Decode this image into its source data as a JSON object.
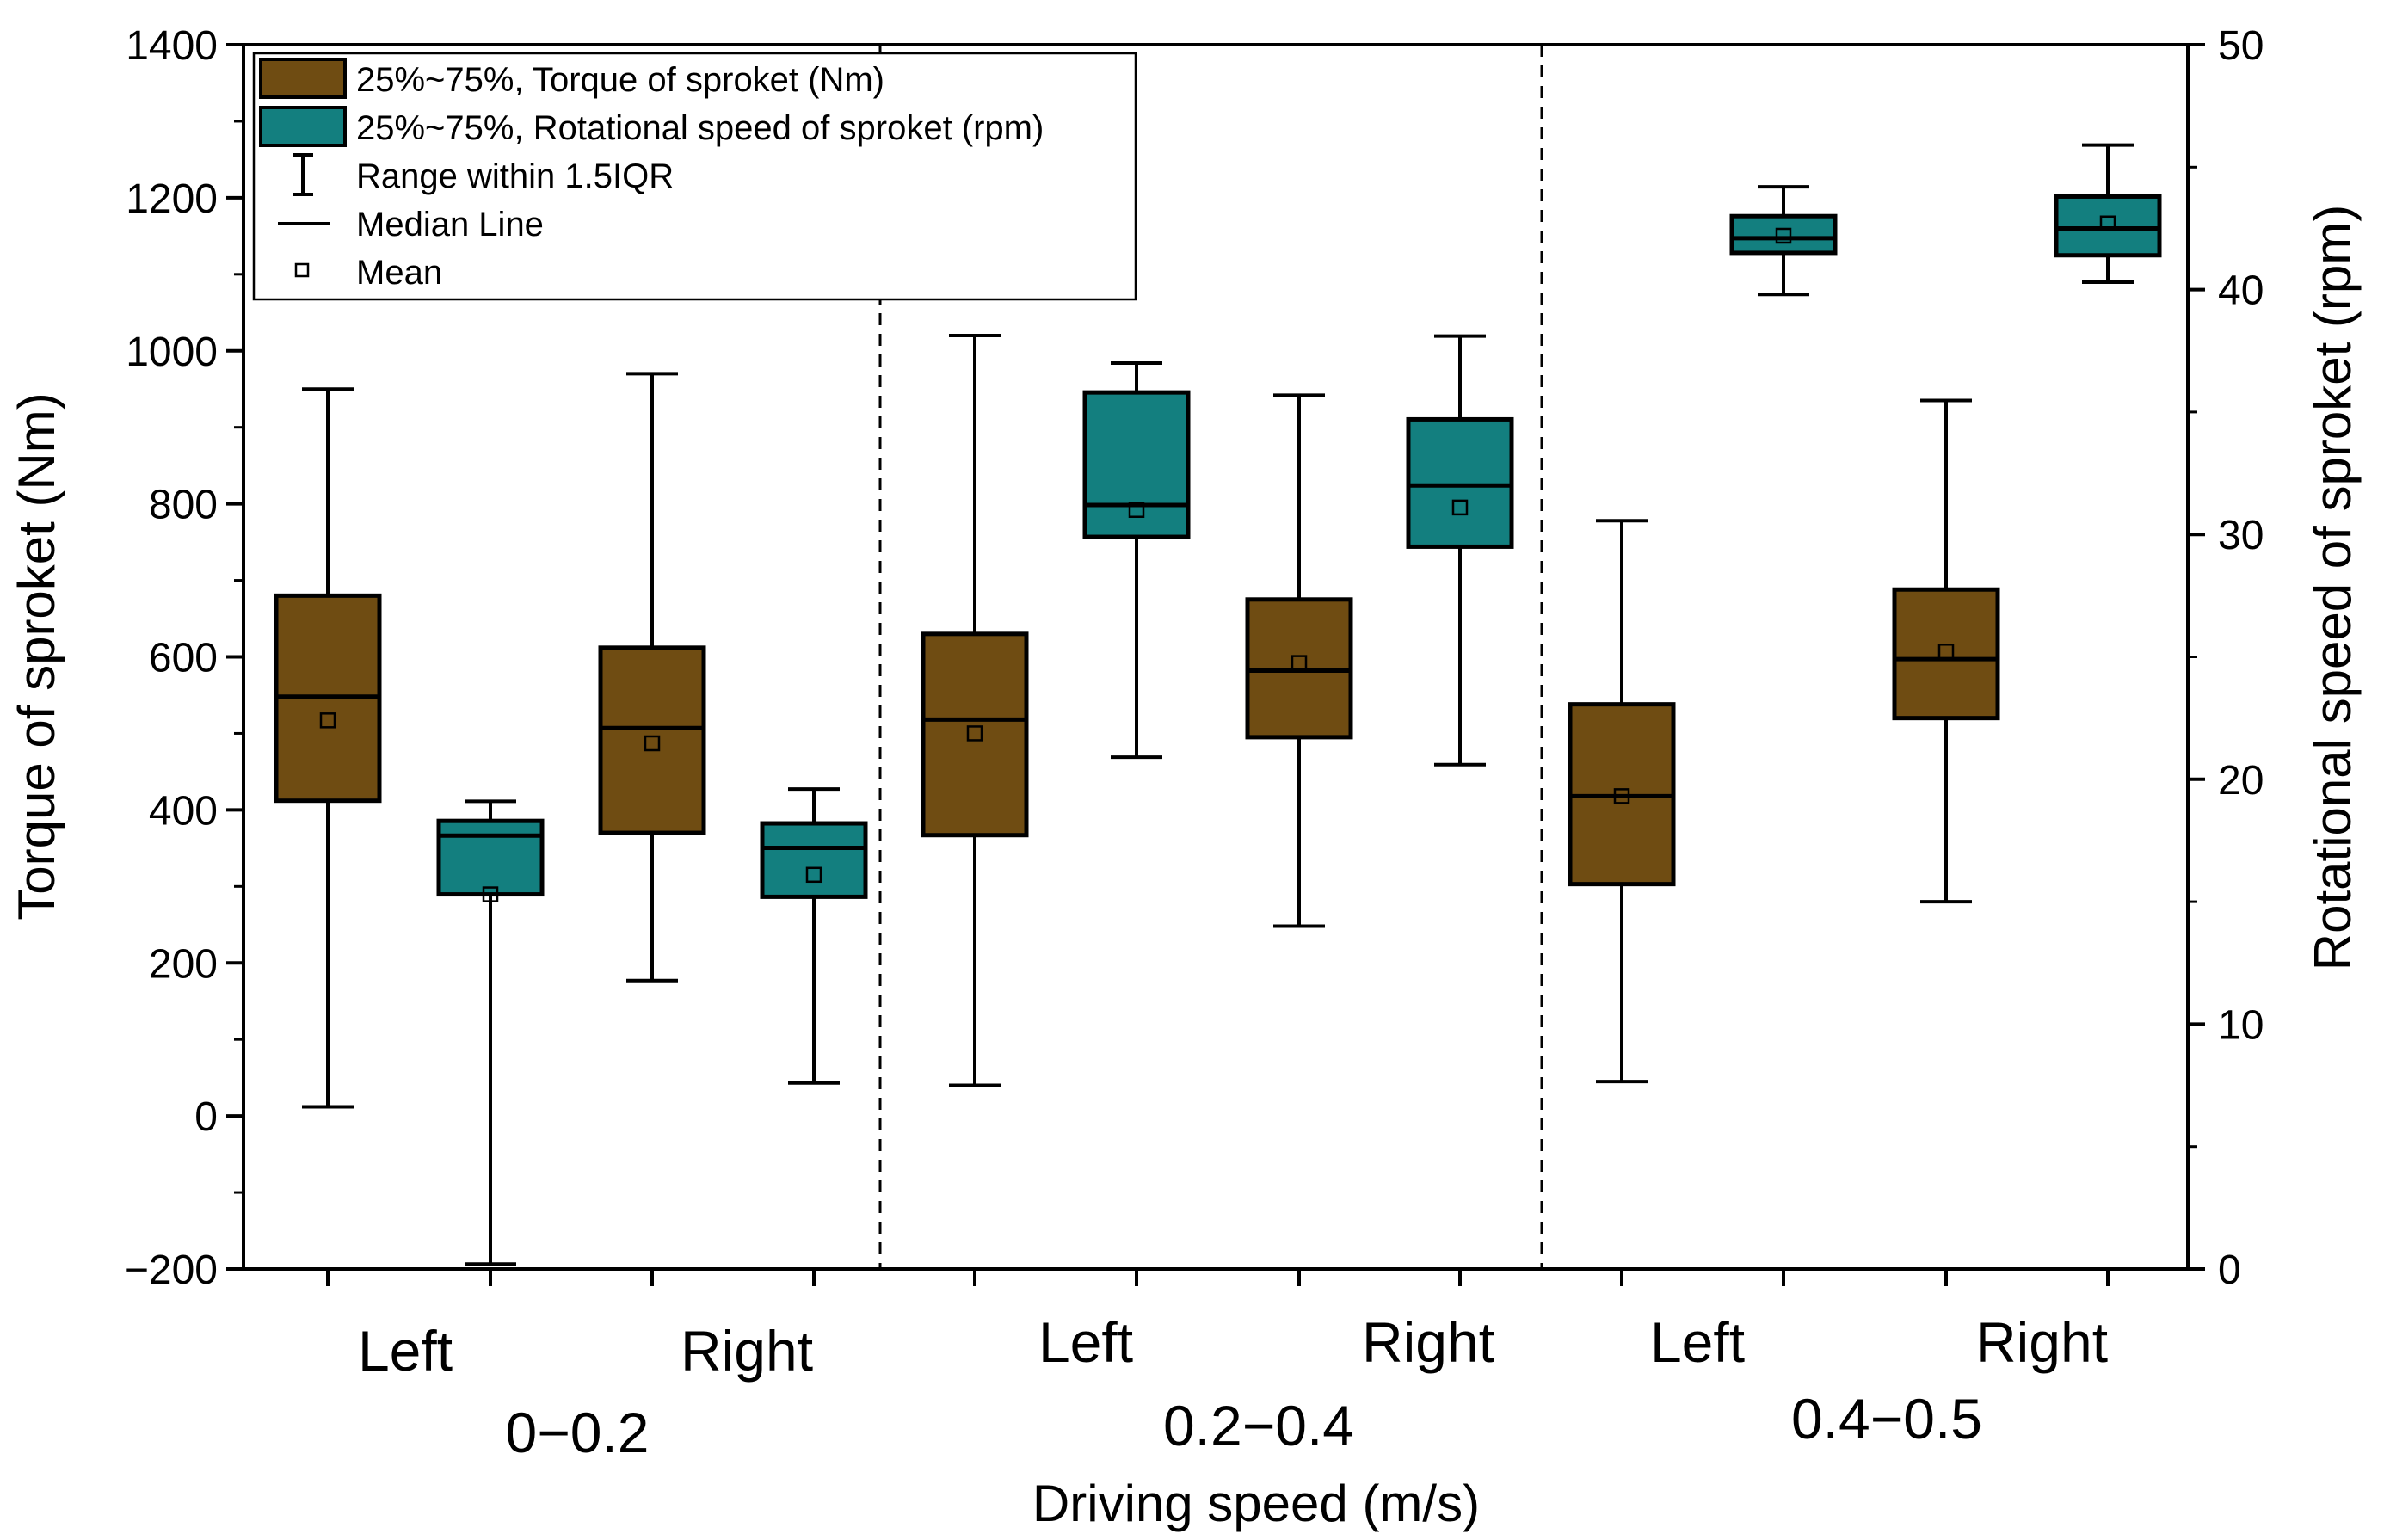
{
  "chart_data": {
    "type": "box",
    "xlabel": "Driving speed (m/s)",
    "ylabel_left": "Torque of sproket (Nm)",
    "ylabel_right": "Rotational speed of sproket (rpm)",
    "ylim_left": [
      -200,
      1400
    ],
    "ylim_right": [
      0,
      50
    ],
    "yticks_left": [
      -200,
      0,
      200,
      400,
      600,
      800,
      1000,
      1200,
      1400
    ],
    "yticks_right": [
      0,
      10,
      20,
      30,
      40,
      50
    ],
    "tick_labels_left": [
      "−200",
      "0",
      "200",
      "400",
      "600",
      "800",
      "1000",
      "1200",
      "1400"
    ],
    "tick_labels_right": [
      "0",
      "10",
      "20",
      "30",
      "40",
      "50"
    ],
    "groups": [
      {
        "label": "0−0.2",
        "sublabels": [
          "Left",
          "Right"
        ]
      },
      {
        "label": "0.2−0.4",
        "sublabels": [
          "Left",
          "Right"
        ]
      },
      {
        "label": "0.4−0.5",
        "sublabels": [
          "Left",
          "Right"
        ]
      }
    ],
    "colors": {
      "torque": "#6f4c12",
      "speed": "#137f7f"
    },
    "legend": {
      "torque_box": "25%~75%, Torque of sproket (Nm)",
      "speed_box": "25%~75%, Rotational speed of sproket (rpm)",
      "whisker": "Range within 1.5IQR",
      "median": "Median Line",
      "mean": "Mean"
    },
    "boxes": [
      {
        "name": "0-0.2 Left torque",
        "series": "torque",
        "group": 0,
        "side": "Left",
        "min": 12,
        "q1": 412,
        "median": 548,
        "q3": 680,
        "max": 950,
        "mean": 517
      },
      {
        "name": "0-0.2 Left speed",
        "series": "speed",
        "group": 0,
        "side": "Left",
        "min": 0.2,
        "q1": 15.3,
        "median": 17.7,
        "q3": 18.3,
        "max": 19.1,
        "mean": 15.3
      },
      {
        "name": "0-0.2 Right torque",
        "series": "torque",
        "group": 0,
        "side": "Right",
        "min": 177,
        "q1": 370,
        "median": 507,
        "q3": 612,
        "max": 970,
        "mean": 487
      },
      {
        "name": "0-0.2 Right speed",
        "series": "speed",
        "group": 0,
        "side": "Right",
        "min": 7.6,
        "q1": 15.2,
        "median": 17.2,
        "q3": 18.2,
        "max": 19.6,
        "mean": 16.1
      },
      {
        "name": "0.2-0.4 Left torque",
        "series": "torque",
        "group": 1,
        "side": "Left",
        "min": 40,
        "q1": 367,
        "median": 518,
        "q3": 630,
        "max": 1020,
        "mean": 500
      },
      {
        "name": "0.2-0.4 Left speed",
        "series": "speed",
        "group": 1,
        "side": "Left",
        "min": 20.9,
        "q1": 29.9,
        "median": 31.2,
        "q3": 35.8,
        "max": 37.0,
        "mean": 31.0
      },
      {
        "name": "0.2-0.4 Right torque",
        "series": "torque",
        "group": 1,
        "side": "Right",
        "min": 248,
        "q1": 495,
        "median": 582,
        "q3": 675,
        "max": 942,
        "mean": 592
      },
      {
        "name": "0.2-0.4 Right speed",
        "series": "speed",
        "group": 1,
        "side": "Right",
        "min": 20.6,
        "q1": 29.5,
        "median": 32.0,
        "q3": 34.7,
        "max": 38.1,
        "mean": 31.1
      },
      {
        "name": "0.4-0.5 Left torque",
        "series": "torque",
        "group": 2,
        "side": "Left",
        "min": 45,
        "q1": 303,
        "median": 418,
        "q3": 538,
        "max": 778,
        "mean": 418
      },
      {
        "name": "0.4-0.5 Left speed",
        "series": "speed",
        "group": 2,
        "side": "Left",
        "min": 39.8,
        "q1": 41.5,
        "median": 42.1,
        "q3": 43.0,
        "max": 44.2,
        "mean": 42.2
      },
      {
        "name": "0.4-0.5 Right torque",
        "series": "torque",
        "group": 2,
        "side": "Right",
        "min": 280,
        "q1": 520,
        "median": 597,
        "q3": 688,
        "max": 935,
        "mean": 607
      },
      {
        "name": "0.4-0.5 Right speed",
        "series": "speed",
        "group": 2,
        "side": "Right",
        "min": 40.3,
        "q1": 41.4,
        "median": 42.5,
        "q3": 43.8,
        "max": 45.9,
        "mean": 42.7
      }
    ]
  }
}
